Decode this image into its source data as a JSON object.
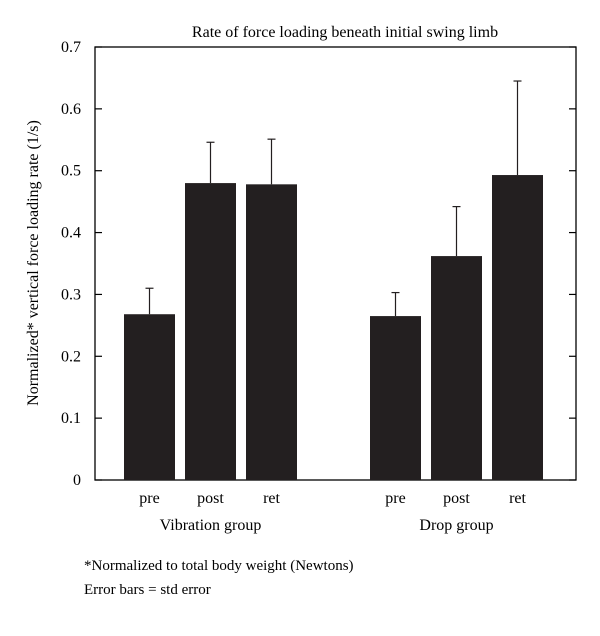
{
  "chart_data": {
    "type": "bar",
    "title": "Rate of force loading beneath initial swing limb",
    "xlabel": "",
    "ylabel": "Normalized* vertical force loading rate (1/s)",
    "ylim": [
      0,
      0.7
    ],
    "yticks": [
      "0",
      "0.1",
      "0.2",
      "0.3",
      "0.4",
      "0.5",
      "0.6",
      "0.7"
    ],
    "groups": [
      {
        "name": "Vibration group",
        "categories": [
          "pre",
          "post",
          "ret"
        ],
        "values": [
          0.268,
          0.48,
          0.478
        ],
        "errors": [
          0.042,
          0.066,
          0.073
        ]
      },
      {
        "name": "Drop group",
        "categories": [
          "pre",
          "post",
          "ret"
        ],
        "values": [
          0.265,
          0.362,
          0.493
        ],
        "errors": [
          0.038,
          0.08,
          0.152
        ]
      }
    ],
    "bar_color": "#231f20",
    "grid": false,
    "legend": "none"
  },
  "footnotes": {
    "normalization": "*Normalized to total body weight (Newtons)",
    "error_bars": "Error bars = std error"
  }
}
